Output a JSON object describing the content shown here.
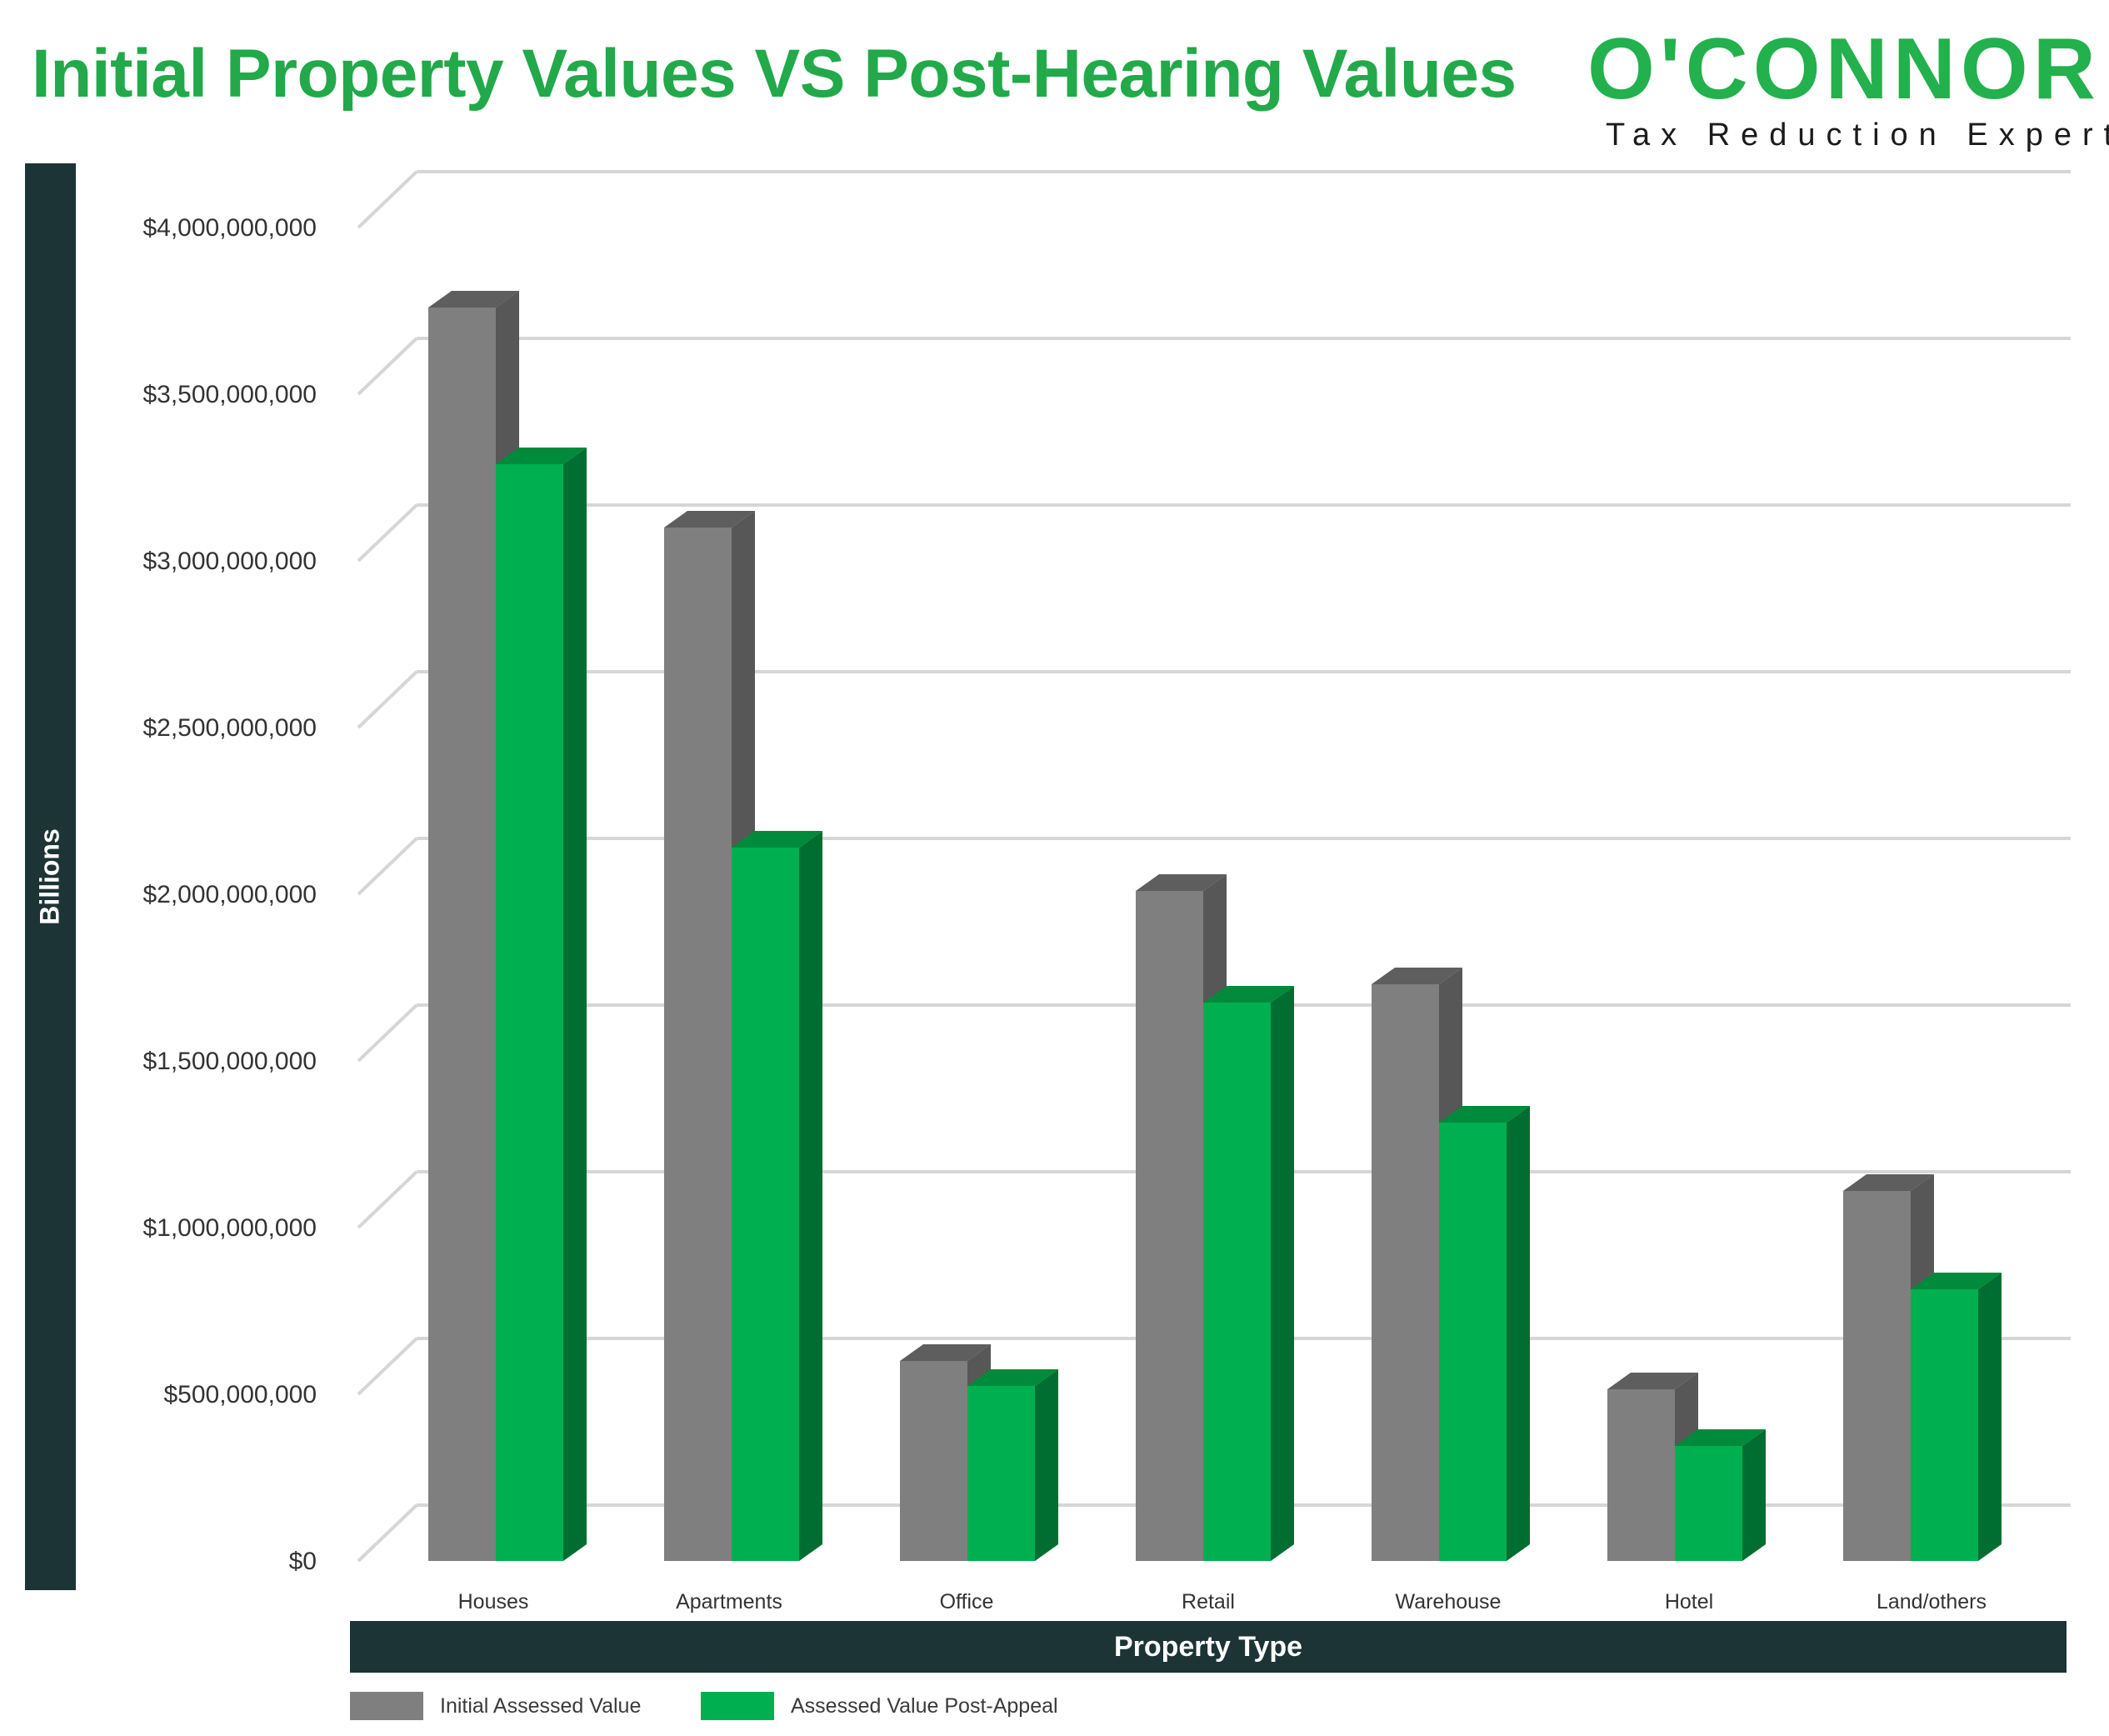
{
  "header": {
    "title": "Initial Property Values VS Post-Hearing Values"
  },
  "logo": {
    "wordmark": "O'CONNOR",
    "tagline": "Tax Reduction Experts",
    "color": "#22b14c"
  },
  "chart_data": {
    "type": "bar",
    "title": "Initial Property Values VS Post-Hearing Values",
    "xlabel": "Property Type",
    "ylabel": "Billions",
    "ylim": [
      0,
      4000000000
    ],
    "yticks": [
      0,
      500000000,
      1000000000,
      1500000000,
      2000000000,
      2500000000,
      3000000000,
      3500000000,
      4000000000
    ],
    "ytick_labels": [
      "$0",
      "$500,000,000",
      "$1,000,000,000",
      "$1,500,000,000",
      "$2,000,000,000",
      "$2,500,000,000",
      "$3,000,000,000",
      "$3,500,000,000",
      "$4,000,000,000"
    ],
    "categories": [
      "Houses",
      "Apartments",
      "Office",
      "Retail",
      "Warehouse",
      "Hotel",
      "Land/others"
    ],
    "series": [
      {
        "name": "Initial Assessed Value",
        "color": "#7f7f7f",
        "values": [
          3760000000,
          3100000000,
          600000000,
          2010000000,
          1730000000,
          515000000,
          1110000000
        ]
      },
      {
        "name": "Assessed Value Post-Appeal",
        "color": "#00b050",
        "values": [
          3290000000,
          2140000000,
          525000000,
          1675000000,
          1315000000,
          345000000,
          815000000
        ]
      }
    ],
    "grid": true,
    "legend_position": "bottom-left",
    "three_d": true
  }
}
